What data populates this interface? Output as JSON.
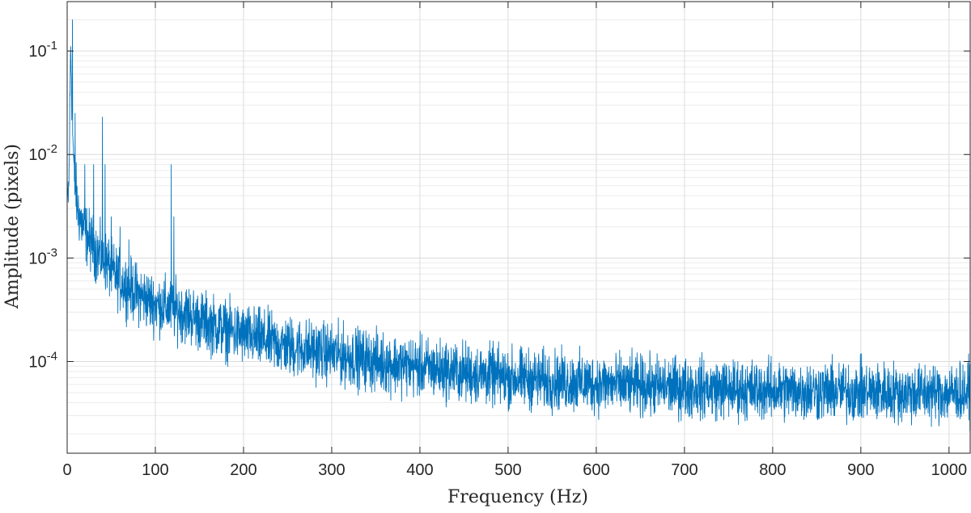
{
  "chart_data": {
    "type": "line",
    "title": "",
    "xlabel": "Frequency (Hz)",
    "ylabel": "Amplitude (pixels)",
    "xlim": [
      0,
      1024
    ],
    "ylim": [
      1.3e-05,
      0.3
    ],
    "yscale": "log",
    "grid": true,
    "minor_grid": true,
    "legend": "none",
    "x_ticks": [
      0,
      100,
      200,
      300,
      400,
      500,
      600,
      700,
      800,
      900,
      1000
    ],
    "x_tick_labels": [
      "0",
      "100",
      "200",
      "300",
      "400",
      "500",
      "600",
      "700",
      "800",
      "900",
      "1000"
    ],
    "y_ticks": [
      0.0001,
      0.001,
      0.01,
      0.1
    ],
    "y_tick_labels": [
      {
        "base": "10",
        "exp": "-4"
      },
      {
        "base": "10",
        "exp": "-3"
      },
      {
        "base": "10",
        "exp": "-2"
      },
      {
        "base": "10",
        "exp": "-1"
      }
    ],
    "series": [
      {
        "color": "#0072BD",
        "x": [
          0,
          2,
          4,
          6,
          8,
          12,
          16,
          20,
          25,
          30,
          35,
          40,
          45,
          50,
          60,
          70,
          80,
          90,
          100,
          110,
          120,
          130,
          140,
          150,
          175,
          200,
          250,
          300,
          350,
          400,
          450,
          500,
          550,
          600,
          650,
          700,
          750,
          800,
          850,
          900,
          950,
          1000,
          1024
        ],
        "values": [
          0.003,
          0.005,
          0.12,
          0.02,
          0.006,
          0.003,
          0.0022,
          0.0018,
          0.0015,
          0.0013,
          0.0011,
          0.001,
          0.0009,
          0.00075,
          0.0006,
          0.00052,
          0.00045,
          0.0004,
          0.00036,
          0.00034,
          0.00032,
          0.0003,
          0.00028,
          0.00025,
          0.00021,
          0.00018,
          0.00014,
          0.00012,
          0.0001,
          8.8e-05,
          7.8e-05,
          7e-05,
          6.5e-05,
          6.1e-05,
          5.8e-05,
          5.6e-05,
          5.4e-05,
          5.3e-05,
          5.2e-05,
          5.1e-05,
          5e-05,
          5e-05,
          5e-05
        ]
      }
    ],
    "peaks": [
      {
        "x": 6,
        "y": 0.2
      },
      {
        "x": 9,
        "y": 0.025
      },
      {
        "x": 20,
        "y": 0.008
      },
      {
        "x": 30,
        "y": 0.008
      },
      {
        "x": 40,
        "y": 0.023
      },
      {
        "x": 43,
        "y": 0.008
      },
      {
        "x": 50,
        "y": 0.0025
      },
      {
        "x": 60,
        "y": 0.002
      },
      {
        "x": 70,
        "y": 0.0015
      },
      {
        "x": 118,
        "y": 0.008
      },
      {
        "x": 121,
        "y": 0.0025
      }
    ],
    "noise_band_decades": 0.28
  }
}
